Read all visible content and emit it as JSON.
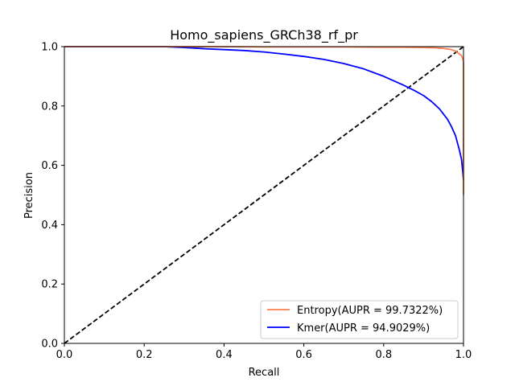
{
  "chart_data": {
    "type": "line",
    "title": "Homo_sapiens_GRCh38_rf_pr",
    "xlabel": "Recall",
    "ylabel": "Precision",
    "xlim": [
      0,
      1
    ],
    "ylim": [
      0,
      1
    ],
    "xticks": [
      "0.0",
      "0.2",
      "0.4",
      "0.6",
      "0.8",
      "1.0"
    ],
    "yticks": [
      "0.0",
      "0.2",
      "0.4",
      "0.6",
      "0.8",
      "1.0"
    ],
    "grid": false,
    "legend_position": "lower-right",
    "series": [
      {
        "name": "Entropy(AUPR = 99.7322%)",
        "color": "#FF7F50",
        "x": [
          0.0,
          0.1,
          0.2,
          0.3,
          0.4,
          0.5,
          0.6,
          0.7,
          0.8,
          0.85,
          0.9,
          0.93,
          0.95,
          0.97,
          0.98,
          0.985,
          0.99,
          0.995,
          0.998,
          1.0,
          1.0,
          1.0,
          1.0
        ],
        "y": [
          1.0,
          1.0,
          1.0,
          1.0,
          1.0,
          0.999,
          0.999,
          0.999,
          0.998,
          0.998,
          0.997,
          0.996,
          0.994,
          0.99,
          0.985,
          0.98,
          0.975,
          0.97,
          0.96,
          0.95,
          0.8,
          0.6,
          0.5
        ]
      },
      {
        "name": "Kmer(AUPR = 94.9029%)",
        "color": "#0000FF",
        "x": [
          0.0,
          0.1,
          0.2,
          0.25,
          0.3,
          0.35,
          0.4,
          0.45,
          0.5,
          0.55,
          0.6,
          0.65,
          0.7,
          0.75,
          0.8,
          0.85,
          0.88,
          0.9,
          0.92,
          0.94,
          0.96,
          0.97,
          0.98,
          0.99,
          0.995,
          0.998,
          1.0
        ],
        "y": [
          1.0,
          1.0,
          1.0,
          1.0,
          0.997,
          0.993,
          0.99,
          0.987,
          0.982,
          0.975,
          0.967,
          0.957,
          0.943,
          0.925,
          0.9,
          0.87,
          0.85,
          0.835,
          0.815,
          0.79,
          0.755,
          0.73,
          0.7,
          0.65,
          0.62,
          0.58,
          0.55
        ]
      },
      {
        "name": "",
        "color": "#000000",
        "dashed": true,
        "x": [
          0,
          1
        ],
        "y": [
          0,
          1
        ]
      }
    ]
  }
}
